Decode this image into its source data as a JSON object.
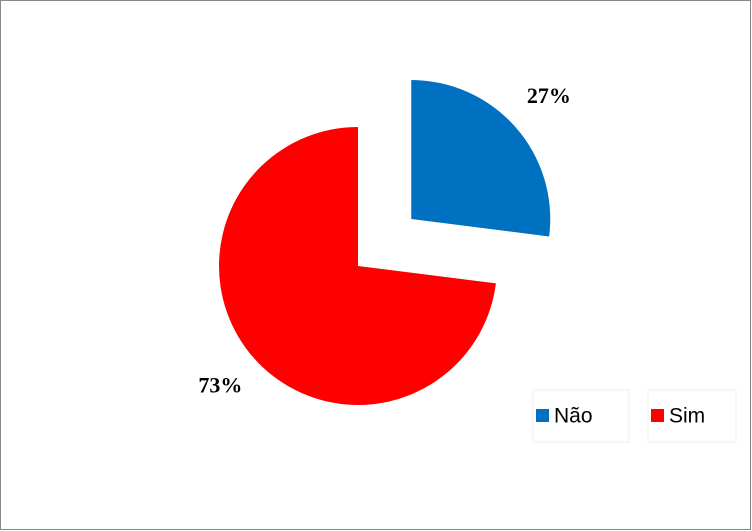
{
  "chart_data": {
    "type": "pie",
    "categories": [
      "Não",
      "Sim"
    ],
    "values": [
      27,
      73
    ],
    "value_labels": [
      "27%",
      "73%"
    ],
    "colors": [
      "#0070c0",
      "#ff0000"
    ],
    "legend": "bottom-right"
  }
}
